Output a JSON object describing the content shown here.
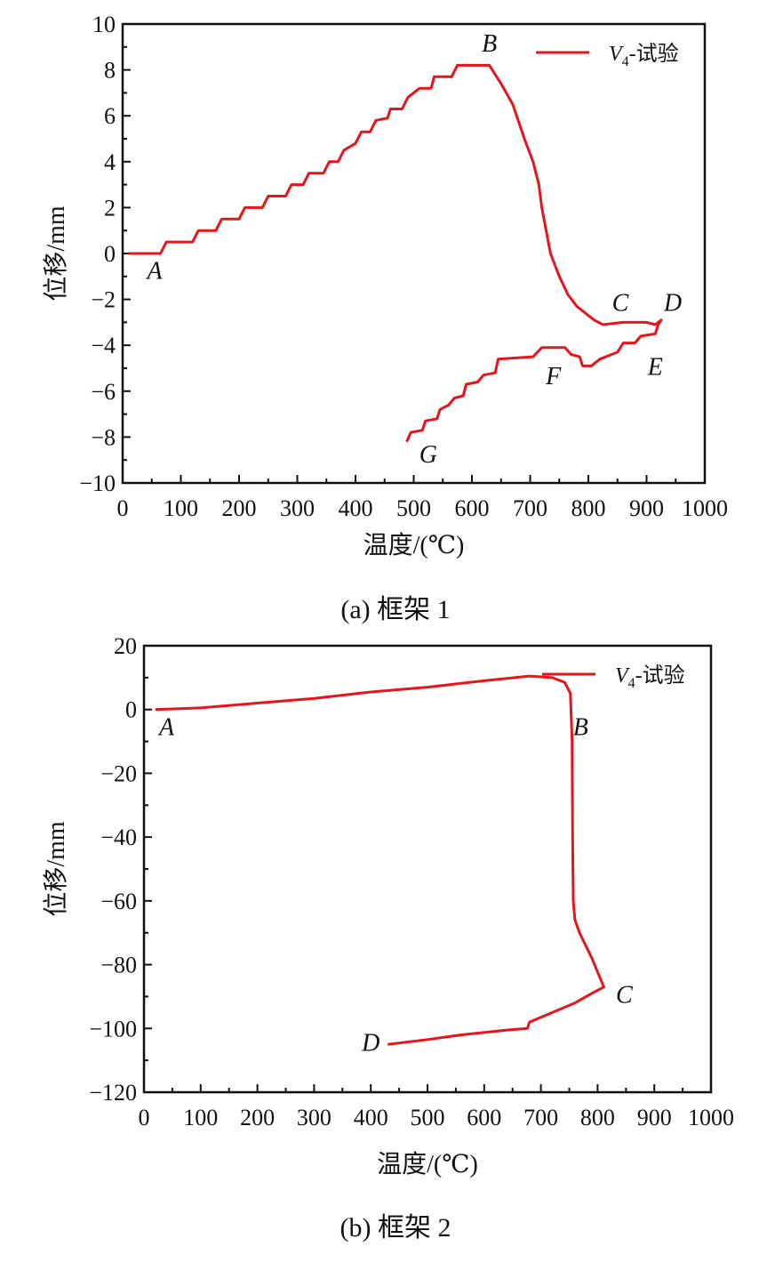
{
  "chart_data": [
    {
      "type": "line",
      "caption": "(a)  框架 1",
      "xlabel": "温度/(℃)",
      "ylabel": "位移/mm",
      "xlim": [
        0,
        1000
      ],
      "ylim": [
        -10,
        10
      ],
      "xticks": [
        0,
        100,
        200,
        300,
        400,
        500,
        600,
        700,
        800,
        900,
        1000
      ],
      "yticks": [
        -10,
        -8,
        -6,
        -4,
        -2,
        0,
        2,
        4,
        6,
        8,
        10
      ],
      "ytick_labels": [
        "−10",
        "−8",
        "−6",
        "−4",
        "−2",
        "0",
        "2",
        "4",
        "6",
        "8",
        "10"
      ],
      "grid": false,
      "legend": {
        "position": "top-right",
        "series_label": "V",
        "subscript": "4",
        "suffix": "-试验"
      },
      "color": "#e8141b",
      "series": [
        {
          "name": "V4-试验",
          "x": [
            10,
            65,
            75,
            120,
            130,
            160,
            170,
            200,
            210,
            240,
            250,
            280,
            290,
            310,
            320,
            345,
            355,
            370,
            380,
            400,
            410,
            425,
            435,
            455,
            460,
            480,
            490,
            510,
            530,
            535,
            565,
            575,
            630,
            640,
            650,
            670,
            690,
            705,
            715,
            720,
            735,
            750,
            765,
            780,
            795,
            810,
            825,
            860,
            900,
            915,
            925,
            920,
            915,
            890,
            880,
            860,
            850,
            820,
            805,
            790,
            785,
            770,
            760,
            720,
            705,
            645,
            640,
            620,
            610,
            590,
            585,
            570,
            560,
            545,
            540,
            520,
            515,
            495,
            488
          ],
          "y": [
            0,
            0,
            0.5,
            0.5,
            1.0,
            1.0,
            1.5,
            1.5,
            2.0,
            2.0,
            2.5,
            2.5,
            3.0,
            3.0,
            3.5,
            3.5,
            4.0,
            4.0,
            4.5,
            4.8,
            5.3,
            5.3,
            5.8,
            5.9,
            6.3,
            6.3,
            6.8,
            7.2,
            7.2,
            7.7,
            7.7,
            8.2,
            8.2,
            7.8,
            7.4,
            6.5,
            5.0,
            4.0,
            3.0,
            2.0,
            0.0,
            -1.0,
            -1.8,
            -2.3,
            -2.6,
            -2.9,
            -3.1,
            -3.0,
            -3.0,
            -3.1,
            -2.9,
            -3.1,
            -3.5,
            -3.6,
            -3.9,
            -3.9,
            -4.3,
            -4.6,
            -4.9,
            -4.9,
            -4.5,
            -4.4,
            -4.1,
            -4.1,
            -4.5,
            -4.6,
            -5.2,
            -5.3,
            -5.6,
            -5.7,
            -6.2,
            -6.3,
            -6.6,
            -6.8,
            -7.2,
            -7.3,
            -7.7,
            -7.8,
            -8.2
          ]
        }
      ],
      "annotations": [
        {
          "text": "A",
          "x": 55,
          "y": -1.1
        },
        {
          "text": "B",
          "x": 630,
          "y": 8.8
        },
        {
          "text": "C",
          "x": 855,
          "y": -2.5
        },
        {
          "text": "D",
          "x": 945,
          "y": -2.5
        },
        {
          "text": "E",
          "x": 915,
          "y": -5.3
        },
        {
          "text": "F",
          "x": 740,
          "y": -5.7
        },
        {
          "text": "G",
          "x": 525,
          "y": -9.1
        }
      ]
    },
    {
      "type": "line",
      "caption": "(b)  框架 2",
      "xlabel": "温度/(℃)",
      "ylabel": "位移/mm",
      "xlim": [
        0,
        1000
      ],
      "ylim": [
        -120,
        20
      ],
      "xticks": [
        0,
        100,
        200,
        300,
        400,
        500,
        600,
        700,
        800,
        900,
        1000
      ],
      "yticks": [
        -120,
        -100,
        -80,
        -60,
        -40,
        -20,
        0,
        20
      ],
      "ytick_labels": [
        "−120",
        "−100",
        "−80",
        "−60",
        "−40",
        "−20",
        "0",
        "20"
      ],
      "grid": false,
      "legend": {
        "position": "top-right",
        "series_label": "V",
        "subscript": "4",
        "suffix": "-试验"
      },
      "color": "#e8141b",
      "series": [
        {
          "name": "V4-试验",
          "x": [
            20,
            100,
            200,
            300,
            400,
            500,
            600,
            680,
            720,
            742,
            752,
            755,
            756,
            757,
            760,
            768,
            790,
            811,
            790,
            760,
            720,
            680,
            676,
            640,
            560,
            500,
            430
          ],
          "y": [
            0,
            0.5,
            2,
            3.5,
            5.5,
            7,
            9,
            10.5,
            10,
            8.5,
            5,
            -10,
            -40,
            -60,
            -66,
            -70,
            -78,
            -87,
            -89,
            -92,
            -95,
            -98,
            -100,
            -100.5,
            -102,
            -103.5,
            -105
          ]
        }
      ],
      "annotations": [
        {
          "text": "A",
          "x": 40,
          "y": -8
        },
        {
          "text": "B",
          "x": 770,
          "y": -8
        },
        {
          "text": "C",
          "x": 847,
          "y": -92
        },
        {
          "text": "D",
          "x": 400,
          "y": -107
        }
      ]
    }
  ]
}
